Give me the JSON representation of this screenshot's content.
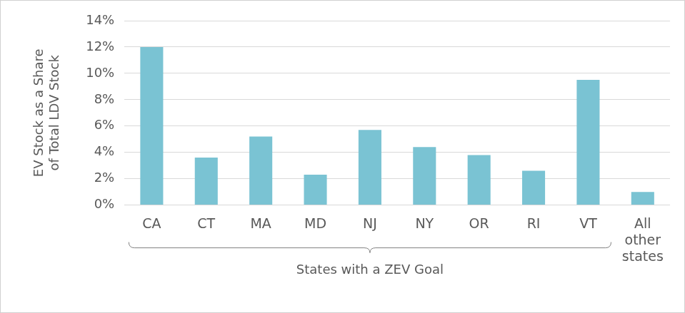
{
  "chart_data": {
    "type": "bar",
    "y_label": "EV Stock as a Share of Total LDV Stock",
    "categories": [
      "CA",
      "CT",
      "MA",
      "MD",
      "NJ",
      "NY",
      "OR",
      "RI",
      "VT",
      "All other states"
    ],
    "values": [
      12.0,
      3.6,
      5.2,
      2.3,
      5.7,
      4.4,
      3.8,
      2.6,
      9.5,
      1.0
    ],
    "color": "#7ac3d3",
    "ylim": [
      0,
      14
    ],
    "yticks": [
      {
        "value": 0,
        "label": "0%"
      },
      {
        "value": 2,
        "label": "2%"
      },
      {
        "value": 4,
        "label": "4%"
      },
      {
        "value": 6,
        "label": "6%"
      },
      {
        "value": 8,
        "label": "8%"
      },
      {
        "value": 10,
        "label": "10%"
      },
      {
        "value": 12,
        "label": "12%"
      },
      {
        "value": 14,
        "label": "14%"
      }
    ],
    "grid": true,
    "annotation": {
      "text": "States with a ZEV Goal",
      "from": "CA",
      "to": "VT"
    }
  }
}
